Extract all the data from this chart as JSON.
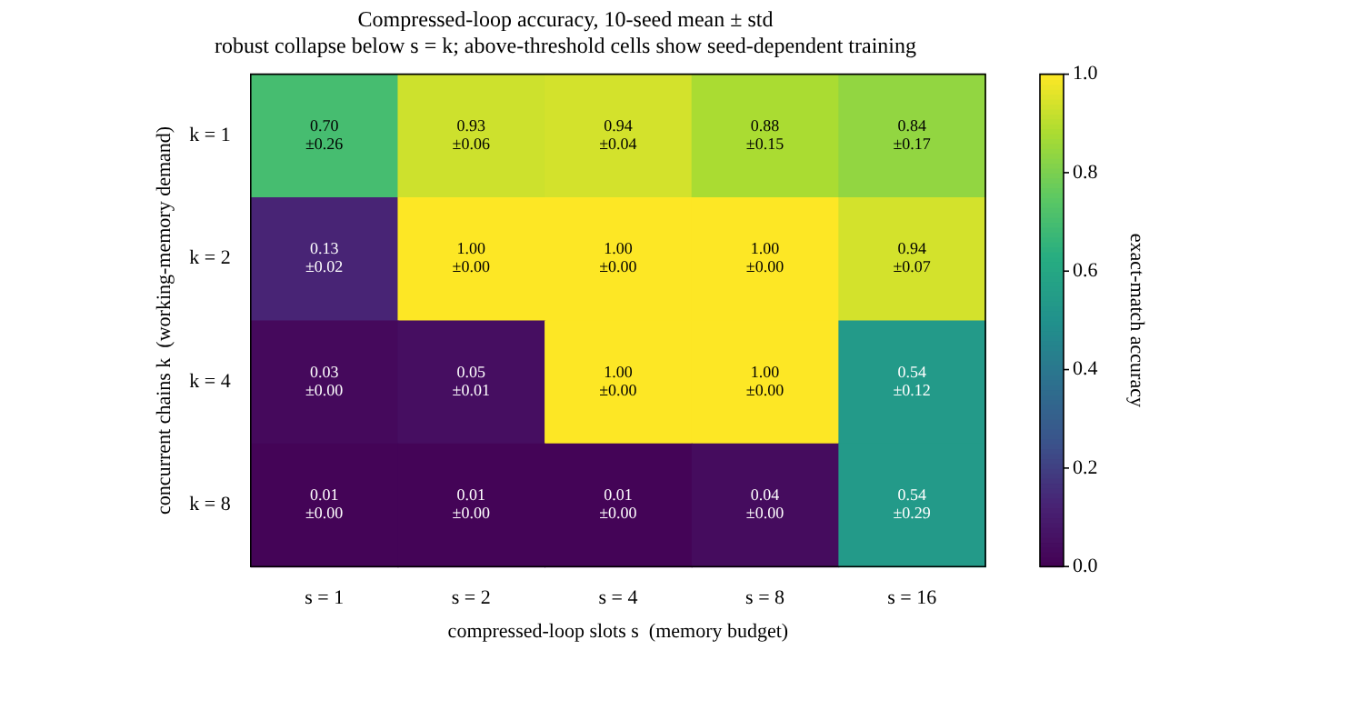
{
  "chart_data": {
    "type": "heatmap",
    "title": "Compressed-loop accuracy, 10-seed mean ± std",
    "subtitle": "robust collapse below s = k; above-threshold cells show seed-dependent training",
    "xlabel": "compressed-loop slots s  (memory budget)",
    "ylabel": "concurrent chains k  (working-memory demand)",
    "clabel": "exact-match accuracy",
    "categories": [
      "s = 1",
      "s = 2",
      "s = 4",
      "s = 8",
      "s = 16"
    ],
    "y_categories": [
      "k = 1",
      "k = 2",
      "k = 4",
      "k = 8"
    ],
    "cells": [
      [
        0.7,
        0.93,
        0.94,
        0.88,
        0.84
      ],
      [
        0.13,
        1.0,
        1.0,
        1.0,
        0.94
      ],
      [
        0.03,
        0.05,
        1.0,
        1.0,
        0.54
      ],
      [
        0.01,
        0.01,
        0.01,
        0.04,
        0.54
      ]
    ],
    "cell_labels": [
      [
        "0.70\n±0.26",
        "0.93\n±0.06",
        "0.94\n±0.04",
        "0.88\n±0.15",
        "0.84\n±0.17"
      ],
      [
        "0.13\n±0.02",
        "1.00\n±0.00",
        "1.00\n±0.00",
        "1.00\n±0.00",
        "0.94\n±0.07"
      ],
      [
        "0.03\n±0.00",
        "0.05\n±0.01",
        "1.00\n±0.00",
        "1.00\n±0.00",
        "0.54\n±0.12"
      ],
      [
        "0.01\n±0.00",
        "0.01\n±0.00",
        "0.01\n±0.00",
        "0.04\n±0.00",
        "0.54\n±0.29"
      ]
    ],
    "clim": [
      0,
      1
    ],
    "cticks": [
      {
        "value": 0,
        "label": "0.0"
      },
      {
        "value": 0.2,
        "label": "0.2"
      },
      {
        "value": 0.4,
        "label": "0.4"
      },
      {
        "value": 0.6,
        "label": "0.6"
      },
      {
        "value": 0.8,
        "label": "0.8"
      },
      {
        "value": 1,
        "label": "1.0"
      }
    ]
  }
}
